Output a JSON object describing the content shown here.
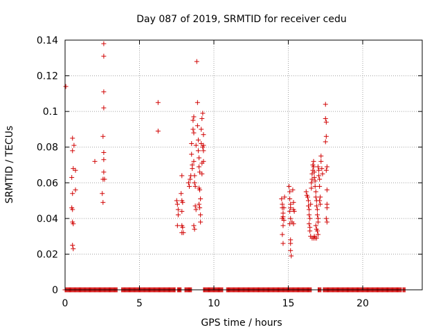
{
  "chart_data": {
    "type": "scatter",
    "title": "Day 087 of 2019, SRMTID for receiver cedu",
    "xlabel": "GPS time / hours",
    "ylabel": "SRMTID / TECUs",
    "xlim": [
      0,
      24
    ],
    "ylim": [
      0,
      0.14
    ],
    "xticks": [
      0,
      5,
      10,
      15,
      20
    ],
    "xtick_labels": [
      "0",
      "5",
      "10",
      "15",
      "20"
    ],
    "yticks": [
      0,
      0.02,
      0.04,
      0.06,
      0.08,
      0.1,
      0.12,
      0.14
    ],
    "ytick_labels": [
      "0",
      "0.02",
      "0.04",
      "0.06",
      "0.08",
      "0.1",
      "0.12",
      "0.14"
    ],
    "grid": true,
    "marker": "+",
    "color": "#d00000",
    "series": [
      {
        "name": "SRMTID",
        "points": [
          [
            0.05,
            0.114
          ],
          [
            0.45,
            0.063
          ],
          [
            0.5,
            0.085
          ],
          [
            0.5,
            0.078
          ],
          [
            0.55,
            0.068
          ],
          [
            0.5,
            0.054
          ],
          [
            0.45,
            0.046
          ],
          [
            0.5,
            0.045
          ],
          [
            0.5,
            0.038
          ],
          [
            0.55,
            0.037
          ],
          [
            0.5,
            0.025
          ],
          [
            0.55,
            0.023
          ],
          [
            0.6,
            0.081
          ],
          [
            0.7,
            0.067
          ],
          [
            0.7,
            0.056
          ],
          [
            2.0,
            0.072
          ],
          [
            2.5,
            0.054
          ],
          [
            2.55,
            0.049
          ],
          [
            2.6,
            0.138
          ],
          [
            2.6,
            0.131
          ],
          [
            2.6,
            0.111
          ],
          [
            2.6,
            0.102
          ],
          [
            2.55,
            0.086
          ],
          [
            2.6,
            0.077
          ],
          [
            2.6,
            0.073
          ],
          [
            2.6,
            0.066
          ],
          [
            2.55,
            0.062
          ],
          [
            2.65,
            0.062
          ],
          [
            6.25,
            0.105
          ],
          [
            6.25,
            0.089
          ],
          [
            7.5,
            0.05
          ],
          [
            7.55,
            0.048
          ],
          [
            7.6,
            0.045
          ],
          [
            7.6,
            0.042
          ],
          [
            7.55,
            0.036
          ],
          [
            7.85,
            0.064
          ],
          [
            7.8,
            0.054
          ],
          [
            7.85,
            0.05
          ],
          [
            7.9,
            0.049
          ],
          [
            7.85,
            0.044
          ],
          [
            7.85,
            0.036
          ],
          [
            7.9,
            0.035
          ],
          [
            7.85,
            0.032
          ],
          [
            7.95,
            0.032
          ],
          [
            8.3,
            0.06
          ],
          [
            8.35,
            0.058
          ],
          [
            8.4,
            0.062
          ],
          [
            8.45,
            0.064
          ],
          [
            8.5,
            0.082
          ],
          [
            8.5,
            0.076
          ],
          [
            8.55,
            0.07
          ],
          [
            8.55,
            0.068
          ],
          [
            8.6,
            0.09
          ],
          [
            8.6,
            0.095
          ],
          [
            8.65,
            0.097
          ],
          [
            8.65,
            0.088
          ],
          [
            8.65,
            0.072
          ],
          [
            8.7,
            0.064
          ],
          [
            8.7,
            0.06
          ],
          [
            8.75,
            0.058
          ],
          [
            8.75,
            0.047
          ],
          [
            8.8,
            0.045
          ],
          [
            8.65,
            0.036
          ],
          [
            8.7,
            0.034
          ],
          [
            8.8,
            0.081
          ],
          [
            8.85,
            0.128
          ],
          [
            8.9,
            0.105
          ],
          [
            8.9,
            0.092
          ],
          [
            8.95,
            0.084
          ],
          [
            8.95,
            0.078
          ],
          [
            9.0,
            0.074
          ],
          [
            9.0,
            0.069
          ],
          [
            9.05,
            0.066
          ],
          [
            9.0,
            0.057
          ],
          [
            9.05,
            0.056
          ],
          [
            9.0,
            0.048
          ],
          [
            9.05,
            0.046
          ],
          [
            9.1,
            0.042
          ],
          [
            9.1,
            0.038
          ],
          [
            9.1,
            0.051
          ],
          [
            9.15,
            0.09
          ],
          [
            9.15,
            0.082
          ],
          [
            9.2,
            0.096
          ],
          [
            9.25,
            0.099
          ],
          [
            9.2,
            0.071
          ],
          [
            9.2,
            0.065
          ],
          [
            9.25,
            0.08
          ],
          [
            9.3,
            0.081
          ],
          [
            9.3,
            0.087
          ],
          [
            9.3,
            0.078
          ],
          [
            9.3,
            0.072
          ],
          [
            14.55,
            0.051
          ],
          [
            14.6,
            0.048
          ],
          [
            14.6,
            0.046
          ],
          [
            14.65,
            0.043
          ],
          [
            14.6,
            0.04
          ],
          [
            14.65,
            0.041
          ],
          [
            14.7,
            0.039
          ],
          [
            14.65,
            0.036
          ],
          [
            14.6,
            0.031
          ],
          [
            14.65,
            0.026
          ],
          [
            14.7,
            0.046
          ],
          [
            14.75,
            0.052
          ],
          [
            15.05,
            0.058
          ],
          [
            15.1,
            0.055
          ],
          [
            15.1,
            0.051
          ],
          [
            15.15,
            0.048
          ],
          [
            15.15,
            0.046
          ],
          [
            15.1,
            0.044
          ],
          [
            15.15,
            0.04
          ],
          [
            15.1,
            0.037
          ],
          [
            15.15,
            0.028
          ],
          [
            15.15,
            0.026
          ],
          [
            15.15,
            0.022
          ],
          [
            15.2,
            0.019
          ],
          [
            15.3,
            0.056
          ],
          [
            15.35,
            0.049
          ],
          [
            15.35,
            0.045
          ],
          [
            15.4,
            0.044
          ],
          [
            15.35,
            0.037
          ],
          [
            15.25,
            0.038
          ],
          [
            16.2,
            0.055
          ],
          [
            16.25,
            0.053
          ],
          [
            16.3,
            0.052
          ],
          [
            16.35,
            0.05
          ],
          [
            16.35,
            0.047
          ],
          [
            16.4,
            0.045
          ],
          [
            16.4,
            0.042
          ],
          [
            16.45,
            0.04
          ],
          [
            16.4,
            0.037
          ],
          [
            16.45,
            0.035
          ],
          [
            16.45,
            0.033
          ],
          [
            16.5,
            0.03
          ],
          [
            16.5,
            0.048
          ],
          [
            16.55,
            0.057
          ],
          [
            16.55,
            0.06
          ],
          [
            16.6,
            0.062
          ],
          [
            16.6,
            0.065
          ],
          [
            16.65,
            0.067
          ],
          [
            16.65,
            0.07
          ],
          [
            16.7,
            0.072
          ],
          [
            16.7,
            0.069
          ],
          [
            16.75,
            0.066
          ],
          [
            16.75,
            0.063
          ],
          [
            16.8,
            0.061
          ],
          [
            16.8,
            0.058
          ],
          [
            16.85,
            0.055
          ],
          [
            16.85,
            0.052
          ],
          [
            16.9,
            0.05
          ],
          [
            16.9,
            0.047
          ],
          [
            16.95,
            0.045
          ],
          [
            16.95,
            0.042
          ],
          [
            17.0,
            0.04
          ],
          [
            17.0,
            0.038
          ],
          [
            16.85,
            0.036
          ],
          [
            16.9,
            0.034
          ],
          [
            16.95,
            0.033
          ],
          [
            17.0,
            0.031
          ],
          [
            16.6,
            0.029
          ],
          [
            16.7,
            0.029
          ],
          [
            16.8,
            0.029
          ],
          [
            16.9,
            0.029
          ],
          [
            16.75,
            0.03
          ],
          [
            17.0,
            0.069
          ],
          [
            17.05,
            0.067
          ],
          [
            17.05,
            0.064
          ],
          [
            17.1,
            0.062
          ],
          [
            17.1,
            0.058
          ],
          [
            17.15,
            0.052
          ],
          [
            17.1,
            0.05
          ],
          [
            17.15,
            0.048
          ],
          [
            17.2,
            0.075
          ],
          [
            17.2,
            0.072
          ],
          [
            17.25,
            0.068
          ],
          [
            17.3,
            0.065
          ],
          [
            17.5,
            0.104
          ],
          [
            17.5,
            0.096
          ],
          [
            17.55,
            0.094
          ],
          [
            17.55,
            0.086
          ],
          [
            17.5,
            0.083
          ],
          [
            17.6,
            0.069
          ],
          [
            17.55,
            0.067
          ],
          [
            17.6,
            0.056
          ],
          [
            17.6,
            0.048
          ],
          [
            17.6,
            0.046
          ],
          [
            17.55,
            0.04
          ],
          [
            17.6,
            0.038
          ]
        ],
        "zero_ranges": [
          [
            0.0,
            3.5
          ],
          [
            3.8,
            7.4
          ],
          [
            7.55,
            7.8
          ],
          [
            8.05,
            8.5
          ],
          [
            9.3,
            10.6
          ],
          [
            10.85,
            16.55
          ],
          [
            17.0,
            17.2
          ],
          [
            17.35,
            22.6
          ],
          [
            22.7,
            22.85
          ]
        ]
      }
    ]
  }
}
